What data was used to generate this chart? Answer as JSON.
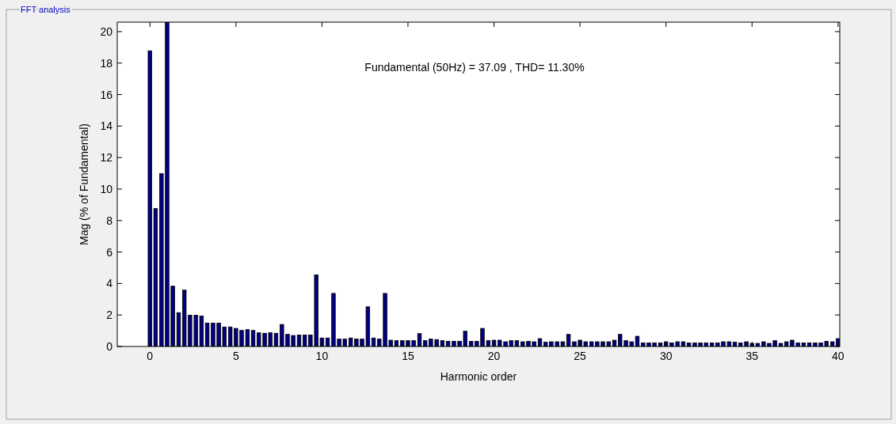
{
  "chart_data": {
    "type": "bar",
    "title": "FFT analysis",
    "xlabel": "Harmonic order",
    "ylabel": "Mag (% of Fundamental)",
    "annotations": [
      "Fundamental (50Hz) = 37.09 , THD= 11.30%"
    ],
    "x": [
      0,
      0.33,
      0.67,
      1,
      1.33,
      1.67,
      2,
      2.33,
      2.67,
      3,
      3.33,
      3.67,
      4,
      4.33,
      4.67,
      5,
      5.33,
      5.67,
      6,
      6.33,
      6.67,
      7,
      7.33,
      7.67,
      8,
      8.33,
      8.67,
      9,
      9.33,
      9.67,
      10,
      10.33,
      10.67,
      11,
      11.33,
      11.67,
      12,
      12.33,
      12.67,
      13,
      13.33,
      13.67,
      14,
      14.33,
      14.67,
      15,
      15.33,
      15.67,
      16,
      16.33,
      16.67,
      17,
      17.33,
      17.67,
      18,
      18.33,
      18.67,
      19,
      19.33,
      19.67,
      20,
      20.33,
      20.67,
      21,
      21.33,
      21.67,
      22,
      22.33,
      22.67,
      23,
      23.33,
      23.67,
      24,
      24.33,
      24.67,
      25,
      25.33,
      25.67,
      26,
      26.33,
      26.67,
      27,
      27.33,
      27.67,
      28,
      28.33,
      28.67,
      29,
      29.33,
      29.67,
      30,
      30.33,
      30.67,
      31,
      31.33,
      31.67,
      32,
      32.33,
      32.67,
      33,
      33.33,
      33.67,
      34,
      34.33,
      34.67,
      35,
      35.33,
      35.67,
      36,
      36.33,
      36.67,
      37,
      37.33,
      37.67,
      38,
      38.33,
      38.67,
      39,
      39.33,
      39.67,
      40
    ],
    "series": [
      {
        "color": "#000080",
        "values": [
          18.78,
          8.76,
          10.98,
          20.6,
          3.83,
          2.15,
          3.58,
          1.99,
          1.99,
          1.94,
          1.49,
          1.49,
          1.49,
          1.24,
          1.24,
          1.15,
          1.02,
          1.07,
          1.02,
          0.87,
          0.84,
          0.87,
          0.84,
          1.4,
          0.77,
          0.7,
          0.73,
          0.73,
          0.73,
          4.55,
          0.54,
          0.54,
          3.37,
          0.47,
          0.47,
          0.54,
          0.47,
          0.47,
          2.52,
          0.54,
          0.47,
          3.37,
          0.4,
          0.37,
          0.37,
          0.37,
          0.37,
          0.82,
          0.37,
          0.47,
          0.44,
          0.37,
          0.33,
          0.33,
          0.33,
          0.97,
          0.33,
          0.33,
          1.15,
          0.37,
          0.4,
          0.4,
          0.3,
          0.37,
          0.37,
          0.3,
          0.33,
          0.3,
          0.5,
          0.27,
          0.3,
          0.3,
          0.3,
          0.77,
          0.3,
          0.4,
          0.3,
          0.3,
          0.3,
          0.3,
          0.3,
          0.4,
          0.77,
          0.37,
          0.3,
          0.65,
          0.23,
          0.23,
          0.23,
          0.23,
          0.3,
          0.23,
          0.3,
          0.3,
          0.23,
          0.23,
          0.23,
          0.23,
          0.23,
          0.23,
          0.3,
          0.3,
          0.27,
          0.23,
          0.3,
          0.2,
          0.2,
          0.3,
          0.2,
          0.37,
          0.2,
          0.3,
          0.4,
          0.23,
          0.23,
          0.23,
          0.23,
          0.23,
          0.33,
          0.3,
          0.5
        ]
      }
    ],
    "xlim": [
      -1.9,
      40.1
    ],
    "ylim": [
      0,
      20.6
    ],
    "xticks": [
      0,
      5,
      10,
      15,
      20,
      25,
      30,
      35,
      40
    ],
    "yticks": [
      0,
      2,
      4,
      6,
      8,
      10,
      12,
      14,
      16,
      18,
      20
    ]
  }
}
